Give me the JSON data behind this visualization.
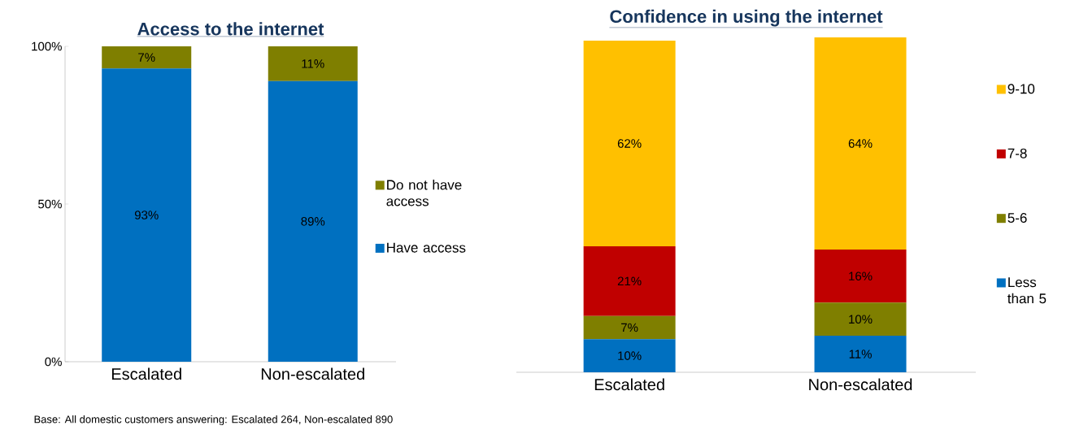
{
  "chart_data": [
    {
      "type": "bar",
      "title": "Access to the internet",
      "stacked": true,
      "legend": "right",
      "categories": [
        "Escalated",
        "Non-escalated"
      ],
      "ylim": [
        0,
        100
      ],
      "yticks": [
        {
          "value": 0,
          "label": "0%"
        },
        {
          "value": 50,
          "label": "50%"
        },
        {
          "value": 100,
          "label": "100%"
        }
      ],
      "series": [
        {
          "name": "Have access",
          "color": "#0070c0",
          "values": [
            93,
            89
          ],
          "value_labels": [
            "93%",
            "89%"
          ]
        },
        {
          "name": "Do not have access",
          "color": "#7f7f00",
          "values": [
            7,
            11
          ],
          "value_labels": [
            "7%",
            "11%"
          ]
        }
      ]
    },
    {
      "type": "bar",
      "title": "Confidence in using the internet",
      "stacked": true,
      "legend": "right",
      "tick_labels": "x",
      "categories": [
        "Escalated",
        "Non-escalated"
      ],
      "ylim": [
        0,
        101
      ],
      "series": [
        {
          "name": "Less than 5",
          "color": "#0070c0",
          "values": [
            10,
            11
          ],
          "value_labels": [
            "10%",
            "11%"
          ]
        },
        {
          "name": "5-6",
          "color": "#7f7f00",
          "values": [
            7,
            10
          ],
          "value_labels": [
            "7%",
            "10%"
          ]
        },
        {
          "name": "7-8",
          "color": "#c00000",
          "values": [
            21,
            16
          ],
          "value_labels": [
            "21%",
            "16%"
          ]
        },
        {
          "name": "9-10",
          "color": "#ffc000",
          "values": [
            62,
            64
          ],
          "value_labels": [
            "62%",
            "64%"
          ]
        }
      ],
      "annotations": [
        "Base: All domestic customers answering: Escalated 264, Non-escalated 890"
      ]
    }
  ]
}
